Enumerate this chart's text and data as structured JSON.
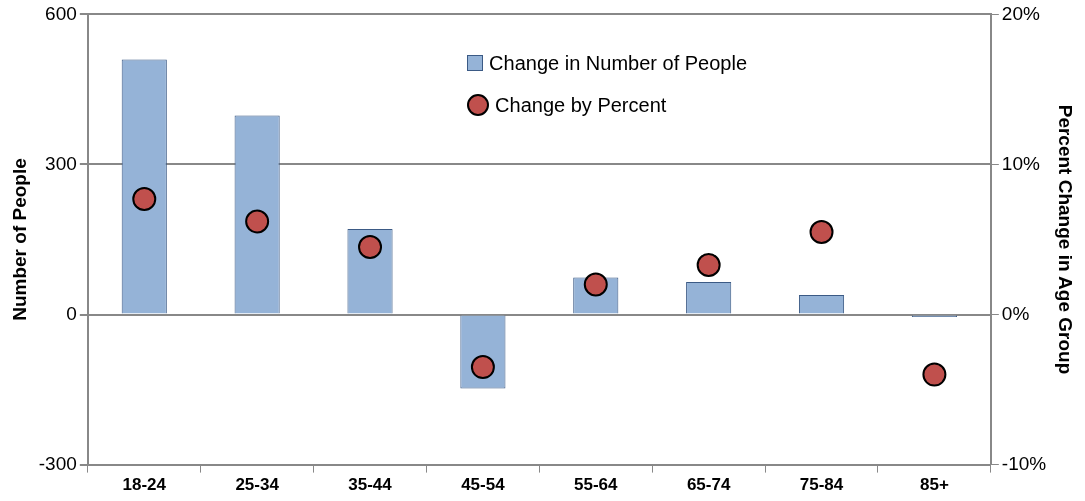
{
  "chart_data": {
    "type": "bar",
    "ylabel": "Number of People",
    "y2label": "Percent Change in Age Group",
    "categories": [
      "18-24",
      "25-34",
      "35-44",
      "45-54",
      "55-64",
      "65-74",
      "75-84",
      "85+"
    ],
    "series": [
      {
        "name": "Change in Number of People",
        "type": "bar",
        "color": "#95b3d7",
        "values": [
          510,
          398,
          171,
          -148,
          74,
          65,
          39,
          -5
        ]
      },
      {
        "name": "Change by Percent",
        "type": "scatter",
        "axis": "y2",
        "color": "#c0504d",
        "x": [
          "18-24",
          "25-34",
          "35-44",
          "45-54",
          "55-64",
          "65-74",
          "75-84",
          "85+"
        ],
        "values": [
          7.7,
          6.2,
          4.5,
          -3.5,
          2.0,
          3.3,
          5.5,
          -4.0
        ]
      }
    ],
    "ylim": [
      -300,
      600
    ],
    "yticks": [
      -300,
      0,
      300,
      600
    ],
    "y2lim": [
      -10,
      20
    ],
    "y2ticks": [
      {
        "value": -10,
        "label": "-10%"
      },
      {
        "value": 0,
        "label": "0%"
      },
      {
        "value": 10,
        "label": "10%"
      },
      {
        "value": 20,
        "label": "20%"
      }
    ],
    "grid": "y",
    "legend": "top",
    "marker": "circle"
  }
}
